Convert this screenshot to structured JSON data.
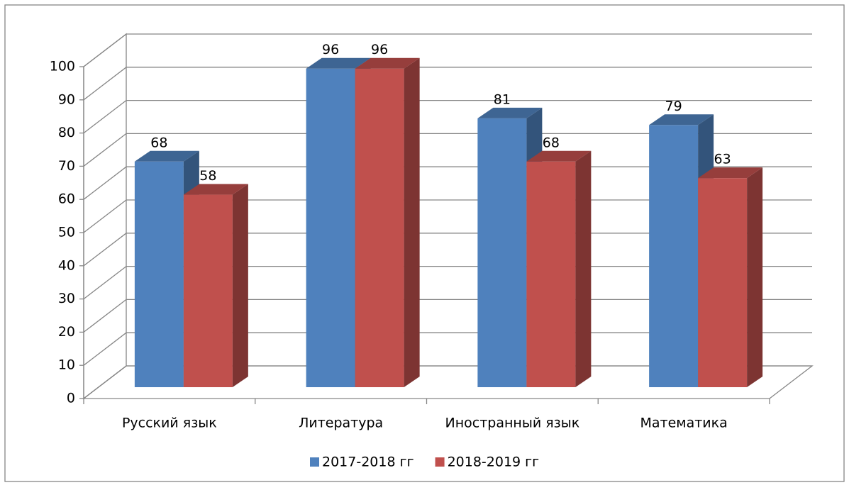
{
  "chart_data": {
    "type": "bar3d",
    "categories": [
      "Русский язык",
      "Литература",
      "Иностранный язык",
      "Математика"
    ],
    "series": [
      {
        "name": "2017-2018 гг",
        "color": "#4f81bd",
        "values": [
          68,
          96,
          81,
          79
        ]
      },
      {
        "name": "2018-2019 гг",
        "color": "#c0504d",
        "values": [
          58,
          96,
          68,
          63
        ]
      }
    ],
    "ylim": [
      0,
      100
    ],
    "yticks": [
      0,
      10,
      20,
      30,
      40,
      50,
      60,
      70,
      80,
      90,
      100
    ],
    "grid": true,
    "legend": "bottom",
    "data_labels": true
  }
}
